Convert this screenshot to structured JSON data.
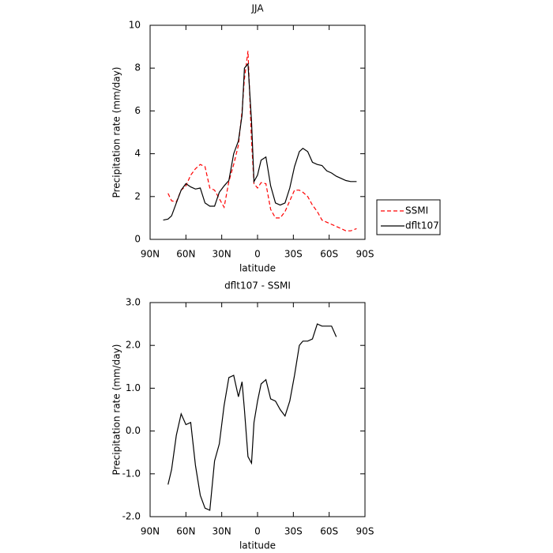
{
  "chart_data": [
    {
      "type": "line",
      "title": "JJA",
      "xlabel": "latitude",
      "ylabel": "Precipitation rate (mm/day)",
      "x": [
        79,
        75,
        72,
        68,
        64,
        60,
        56,
        52,
        48,
        44,
        40,
        36,
        32,
        28,
        24,
        20,
        16,
        13,
        11,
        8,
        5,
        3,
        0,
        -3,
        -7,
        -11,
        -15,
        -19,
        -23,
        -27,
        -31,
        -35,
        -38,
        -42,
        -46,
        -50,
        -54,
        -58,
        -62,
        -66,
        -70,
        -74,
        -78,
        -83
      ],
      "series": [
        {
          "name": "SSMI",
          "color": "#ff0000",
          "line_style": "dashed",
          "values": [
            null,
            2.15,
            1.8,
            1.75,
            2.3,
            2.5,
            3.0,
            3.3,
            3.5,
            3.4,
            2.4,
            2.3,
            1.9,
            1.5,
            2.7,
            3.5,
            4.4,
            6.0,
            7.5,
            8.8,
            4.6,
            2.6,
            2.4,
            2.65,
            2.6,
            1.4,
            1.0,
            1.0,
            1.3,
            1.8,
            2.3,
            2.3,
            2.2,
            2.0,
            1.6,
            1.3,
            0.9,
            0.8,
            0.7,
            0.6,
            0.5,
            0.4,
            0.4,
            0.5
          ]
        },
        {
          "name": "dflt107",
          "color": "#000000",
          "line_style": "solid",
          "values": [
            0.9,
            0.95,
            1.1,
            1.7,
            2.3,
            2.6,
            2.45,
            2.35,
            2.4,
            1.7,
            1.55,
            1.55,
            2.2,
            2.5,
            2.75,
            4.0,
            4.6,
            5.8,
            8.0,
            8.2,
            5.5,
            2.7,
            3.0,
            3.7,
            3.85,
            2.5,
            1.7,
            1.6,
            1.7,
            2.4,
            3.4,
            4.1,
            4.25,
            4.1,
            3.6,
            3.5,
            3.45,
            3.2,
            3.1,
            2.95,
            2.85,
            2.75,
            2.7,
            2.7
          ]
        }
      ],
      "xlim": [
        90,
        -90
      ],
      "xticks": [
        {
          "value": 90,
          "label": "90N"
        },
        {
          "value": 60,
          "label": "60N"
        },
        {
          "value": 30,
          "label": "30N"
        },
        0,
        {
          "value": -30,
          "label": "30S"
        },
        {
          "value": -60,
          "label": "60S"
        },
        {
          "value": -90,
          "label": "90S"
        }
      ],
      "ylim": [
        0,
        10
      ],
      "yticks": [
        0,
        2,
        4,
        6,
        8,
        10
      ],
      "legend": "right"
    },
    {
      "type": "line",
      "title": "dflt107 - SSMI",
      "xlabel": "latitude",
      "ylabel": "Precipitation rate (mm/day)",
      "x": [
        79,
        75,
        72,
        68,
        64,
        60,
        56,
        52,
        48,
        44,
        40,
        36,
        32,
        28,
        24,
        20,
        16,
        13,
        11,
        8,
        5,
        3,
        0,
        -3,
        -7,
        -11,
        -15,
        -19,
        -23,
        -27,
        -31,
        -35,
        -38,
        -42,
        -46,
        -50,
        -54,
        -58,
        -62,
        -66
      ],
      "color": "#000000",
      "values": [
        null,
        -1.25,
        -0.9,
        -0.1,
        0.4,
        0.15,
        0.2,
        -0.8,
        -1.5,
        -1.8,
        -1.85,
        -0.7,
        -0.3,
        0.6,
        1.25,
        1.3,
        0.8,
        1.15,
        0.5,
        -0.6,
        -0.75,
        0.2,
        0.7,
        1.1,
        1.2,
        0.75,
        0.7,
        0.5,
        0.35,
        0.7,
        1.3,
        2.0,
        2.1,
        2.1,
        2.15,
        2.5,
        2.45,
        2.45,
        2.45,
        2.2
      ],
      "xlim": [
        90,
        -90
      ],
      "xticks": [
        {
          "value": 90,
          "label": "90N"
        },
        {
          "value": 60,
          "label": "60N"
        },
        {
          "value": 30,
          "label": "30N"
        },
        0,
        {
          "value": -30,
          "label": "30S"
        },
        {
          "value": -60,
          "label": "60S"
        },
        {
          "value": -90,
          "label": "90S"
        }
      ],
      "ylim": [
        -2,
        3
      ],
      "yticks": [
        {
          "value": 3,
          "label": "3.0"
        },
        {
          "value": 2,
          "label": "2.0"
        },
        {
          "value": 1,
          "label": "1.0"
        },
        {
          "value": 0,
          "label": "0.0"
        },
        {
          "value": -1,
          "label": "-1.0"
        },
        {
          "value": -2,
          "label": "-2.0"
        }
      ]
    }
  ]
}
